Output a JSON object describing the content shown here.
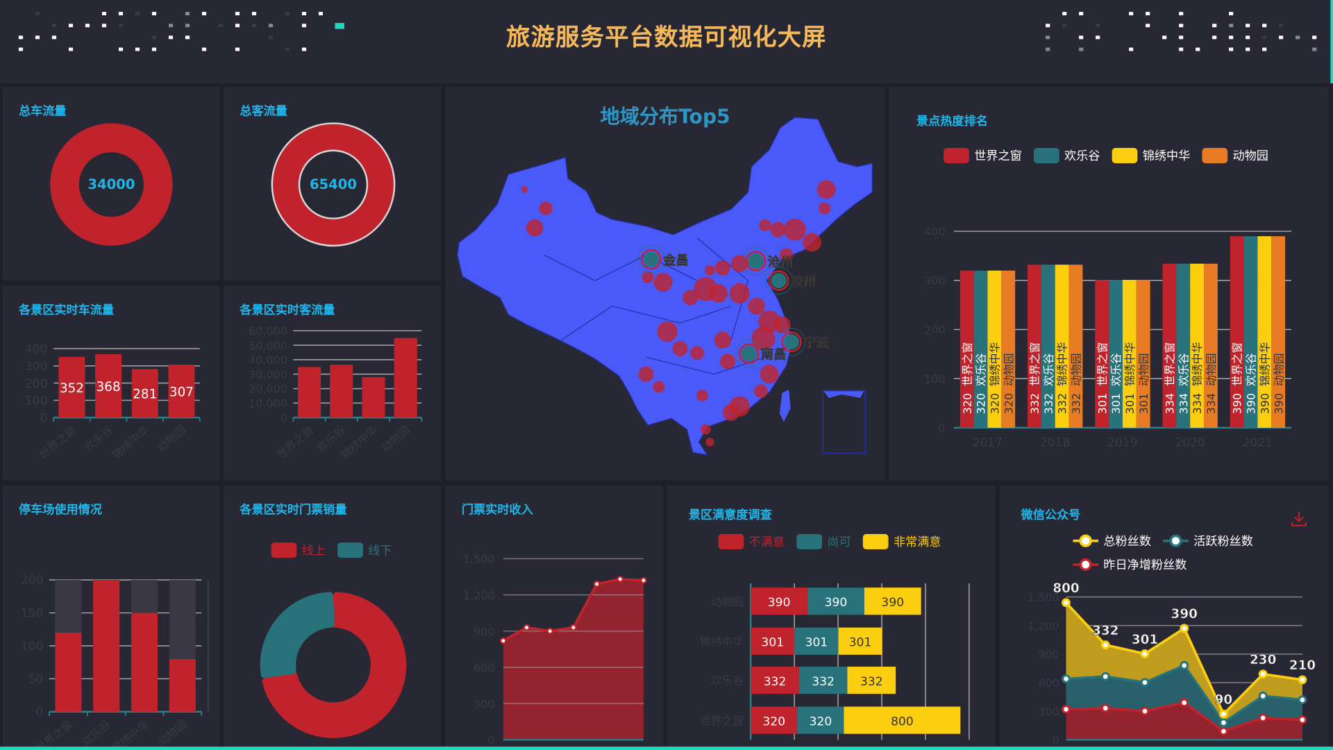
{
  "header": {
    "title": "旅游服务平台数据可视化大屏"
  },
  "colors": {
    "red": "#c0232b",
    "teal": "#27727b",
    "yellow": "#fcce10",
    "orange": "#e87c25",
    "title": "#f5b85a",
    "panel_title": "#1fb5e8",
    "map_fill": "#4a5af8",
    "accent_line": "#1ed9c0"
  },
  "total_cars": {
    "title": "总车流量",
    "value": "34000"
  },
  "total_visitors": {
    "title": "总客流量",
    "value": "65400"
  },
  "map": {
    "title": "地域分布Top5",
    "cities": [
      "金昌",
      "沧州",
      "胶州",
      "宁波",
      "南昌"
    ]
  },
  "wechat": {
    "download_icon": "download-icon"
  },
  "chart_data": [
    {
      "type": "bar",
      "title": "各景区实时车流量",
      "categories": [
        "世界之窗",
        "欢乐谷",
        "锦绣中华",
        "动物园"
      ],
      "values": [
        352,
        368,
        281,
        307
      ],
      "ylim": [
        0,
        400
      ],
      "yticks": [
        "0",
        "100",
        "200",
        "300",
        "400"
      ],
      "data_labels": true
    },
    {
      "type": "bar",
      "title": "各景区实时客流量",
      "categories": [
        "世界之窗",
        "欢乐谷",
        "锦绣中华",
        "动物园"
      ],
      "values": [
        35000,
        36500,
        28000,
        55000
      ],
      "ylim": [
        0,
        60000
      ],
      "yticks": [
        "0",
        "10,000",
        "20,000",
        "30,000",
        "40,000",
        "50,000",
        "60,000"
      ]
    },
    {
      "type": "bar",
      "title": "景点热度排名",
      "categories": [
        "2017",
        "2018",
        "2019",
        "2020",
        "2021"
      ],
      "series": [
        {
          "name": "世界之窗",
          "values": [
            320,
            332,
            301,
            334,
            390
          ]
        },
        {
          "name": "欢乐谷",
          "values": [
            320,
            332,
            301,
            334,
            390
          ]
        },
        {
          "name": "锦绣中华",
          "values": [
            320,
            332,
            301,
            334,
            390
          ]
        },
        {
          "name": "动物园",
          "values": [
            320,
            332,
            301,
            334,
            390
          ]
        }
      ],
      "ylim": [
        0,
        400
      ],
      "yticks": [
        "0",
        "100",
        "200",
        "300",
        "400"
      ],
      "legend": "top"
    },
    {
      "type": "bar",
      "title": "停车场使用情况",
      "categories": [
        "世界之窗",
        "欢乐谷",
        "锦绣中华",
        "动物园"
      ],
      "values": [
        120,
        200,
        150,
        80
      ],
      "capacity": 200,
      "ylim": [
        0,
        200
      ],
      "yticks": [
        "0",
        "50",
        "100",
        "150",
        "200"
      ]
    },
    {
      "type": "pie",
      "title": "各景区实时门票销量",
      "series": [
        {
          "name": "线上",
          "value": 72
        },
        {
          "name": "线下",
          "value": 28
        }
      ],
      "legend": "top"
    },
    {
      "type": "area",
      "title": "门票实时收入",
      "values": [
        820,
        930,
        900,
        930,
        1290,
        1330,
        1320
      ],
      "ylim": [
        0,
        1500
      ],
      "yticks": [
        "0",
        "300",
        "600",
        "900",
        "1,200",
        "1,500"
      ]
    },
    {
      "type": "bar",
      "orientation": "horizontal",
      "stacked": true,
      "title": "景区满意度调查",
      "categories": [
        "世界之窗",
        "欢乐谷",
        "锦绣中华",
        "动物园"
      ],
      "series": [
        {
          "name": "不满意",
          "values": [
            320,
            332,
            301,
            390
          ]
        },
        {
          "name": "尚可",
          "values": [
            320,
            332,
            301,
            390
          ]
        },
        {
          "name": "非常满意",
          "values": [
            800,
            332,
            301,
            390
          ]
        }
      ],
      "xlim": [
        0,
        1500
      ],
      "legend": "top"
    },
    {
      "type": "area",
      "stacked": true,
      "title": "微信公众号",
      "series": [
        {
          "name": "总粉丝数",
          "values": [
            800,
            332,
            301,
            390,
            90,
            230,
            210
          ]
        },
        {
          "name": "活跃粉丝数",
          "values": [
            320,
            332,
            301,
            390,
            90,
            230,
            210
          ]
        },
        {
          "name": "昨日净增粉丝数",
          "values": [
            320,
            332,
            301,
            390,
            90,
            230,
            210
          ]
        }
      ],
      "ylim": [
        0,
        1500
      ],
      "yticks": [
        "0",
        "300",
        "600",
        "900",
        "1,200",
        "1,500"
      ],
      "legend": "top"
    }
  ]
}
